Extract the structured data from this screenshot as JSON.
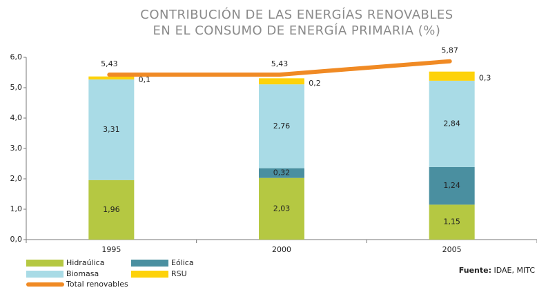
{
  "chart_data": {
    "type": "bar",
    "stacked": true,
    "title": [
      "CONTRIBUCIÓN DE LAS ENERGÍAS RENOVABLES",
      "EN EL CONSUMO DE ENERGÍA PRIMARIA  (%)"
    ],
    "categories": [
      "1995",
      "2000",
      "2005"
    ],
    "series": [
      {
        "name": "Hidraúlica",
        "color": "#b5c842",
        "values": [
          1.96,
          2.03,
          1.15
        ],
        "value_labels": [
          "1,96",
          "2,03",
          "1,15"
        ]
      },
      {
        "name": "Eólica",
        "color": "#4a8fa0",
        "values": [
          null,
          0.32,
          1.24
        ],
        "value_labels": [
          null,
          "0,32",
          "1,24"
        ]
      },
      {
        "name": "Biomasa",
        "color": "#a9dbe6",
        "values": [
          3.31,
          2.76,
          2.84
        ],
        "value_labels": [
          "3,31",
          "2,76",
          "2,84"
        ]
      },
      {
        "name": "RSU",
        "color": "#fdd20a",
        "values": [
          0.1,
          0.2,
          0.3
        ],
        "value_labels": [
          "0,1",
          "0,2",
          "0,3"
        ]
      },
      {
        "name": "Total renovables",
        "type": "line",
        "color": "#f08a24",
        "values": [
          5.43,
          5.43,
          5.87
        ],
        "value_labels": [
          "5,43",
          "5,43",
          "5,87"
        ]
      }
    ],
    "ylim": [
      0,
      6
    ],
    "yticks": [
      {
        "value": 0,
        "label": "0,0"
      },
      {
        "value": 1,
        "label": "1,0"
      },
      {
        "value": 2,
        "label": "2,0"
      },
      {
        "value": 3,
        "label": "3,0"
      },
      {
        "value": 4,
        "label": "4,0"
      },
      {
        "value": 5,
        "label": "5,0"
      },
      {
        "value": 6,
        "label": "6,0"
      }
    ],
    "legend": "bottom-left",
    "source_label": "Fuente:",
    "source": "IDAE,  MITC"
  }
}
